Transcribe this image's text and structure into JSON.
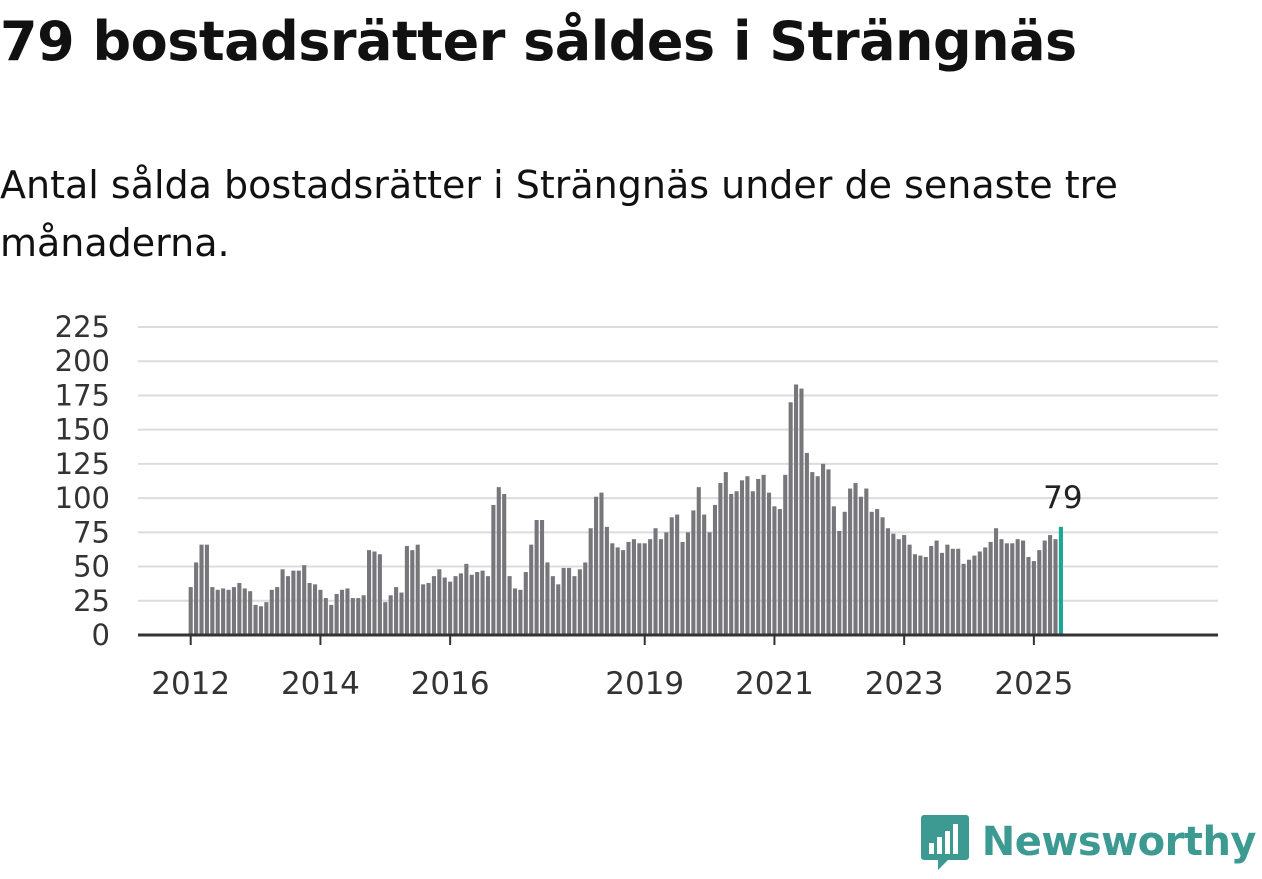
{
  "header": {
    "title": "79 bostadsrätter såldes i Strängnäs",
    "subtitle": "Antal sålda bostadsrätter i Strängnäs under de senaste tre månaderna."
  },
  "brand": {
    "name": "Newsworthy",
    "logo_icon": "newsworthy-chart-bubble-icon",
    "color": "#3d9a93"
  },
  "colors": {
    "bar": "#77767b",
    "highlight": "#1aa595",
    "grid": "#dcdcdc",
    "axis": "#333333"
  },
  "chart_data": {
    "type": "bar",
    "title": "Antal sålda bostadsrätter i Strängnäs under de senaste tre månaderna.",
    "x_unit": "month",
    "x_start": "2012-01",
    "x_end": "2025-07",
    "ylim": [
      0,
      225
    ],
    "y_ticks": [
      0,
      25,
      50,
      75,
      100,
      125,
      150,
      175,
      200,
      225
    ],
    "x_tick_labels": [
      "2012",
      "2014",
      "2016",
      "2019",
      "2021",
      "2023",
      "2025"
    ],
    "grid": true,
    "highlight_last": true,
    "last_label": "79",
    "values": [
      35,
      53,
      66,
      66,
      35,
      33,
      34,
      33,
      35,
      38,
      34,
      32,
      22,
      21,
      24,
      33,
      35,
      48,
      43,
      47,
      47,
      51,
      38,
      37,
      33,
      27,
      22,
      30,
      33,
      34,
      27,
      27,
      29,
      62,
      61,
      59,
      24,
      29,
      35,
      31,
      65,
      62,
      66,
      37,
      38,
      43,
      48,
      42,
      39,
      43,
      45,
      52,
      44,
      46,
      47,
      43,
      95,
      108,
      103,
      43,
      34,
      33,
      46,
      66,
      84,
      84,
      53,
      43,
      37,
      49,
      49,
      43,
      48,
      53,
      78,
      101,
      104,
      79,
      67,
      64,
      62,
      68,
      70,
      67,
      67,
      70,
      78,
      70,
      75,
      86,
      88,
      68,
      75,
      91,
      108,
      88,
      75,
      95,
      111,
      119,
      103,
      105,
      113,
      116,
      105,
      114,
      117,
      104,
      94,
      92,
      117,
      170,
      183,
      180,
      133,
      119,
      116,
      125,
      121,
      94,
      76,
      90,
      107,
      111,
      101,
      107,
      90,
      92,
      86,
      78,
      74,
      70,
      73,
      66,
      59,
      58,
      57,
      65,
      69,
      60,
      66,
      63,
      63,
      52,
      55,
      58,
      61,
      64,
      68,
      78,
      70,
      67,
      67,
      70,
      69,
      57,
      54,
      62,
      69,
      73,
      70,
      79
    ]
  }
}
